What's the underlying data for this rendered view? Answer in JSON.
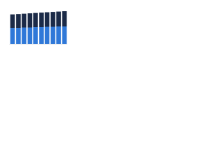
{
  "chart_data": {
    "type": "stacked-bar",
    "categories": [
      null,
      null,
      null,
      null,
      null,
      null,
      null,
      null,
      null,
      null
    ],
    "series": [
      {
        "color": "#2f78d8",
        "values": [
          45,
          45,
          46,
          46,
          47,
          47,
          48,
          48,
          49,
          49
        ]
      },
      {
        "color": "#1b2a47",
        "values": [
          38,
          39,
          39,
          40,
          40,
          41,
          41,
          42,
          42,
          43
        ]
      }
    ],
    "ylim": [
      0,
      100
    ]
  }
}
